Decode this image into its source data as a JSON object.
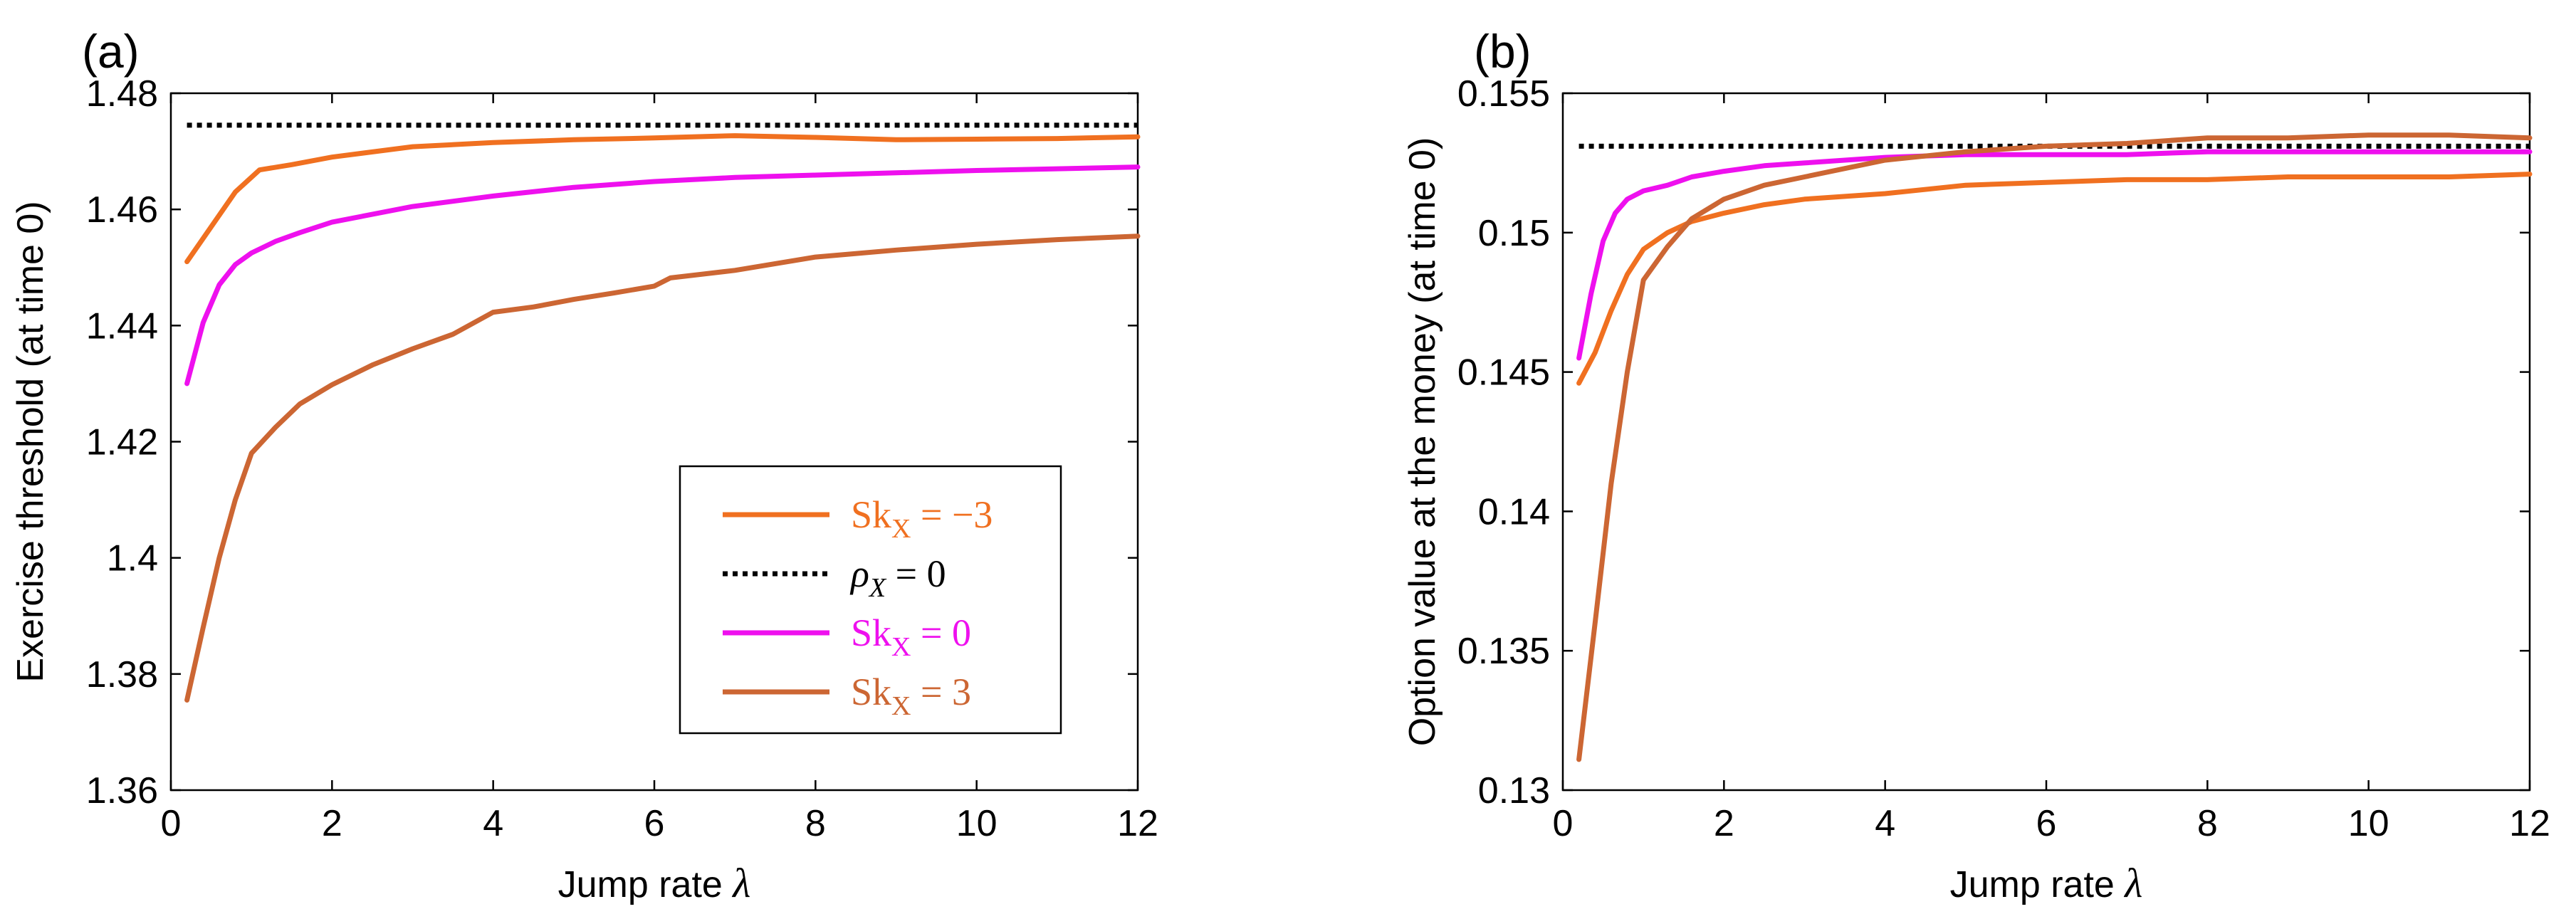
{
  "chart_data": [
    {
      "panel_label": "(a)",
      "type": "line",
      "xlabel": "Jump rate",
      "xlabel_symbol": "λ",
      "ylabel": "Exercise threshold (at time 0)",
      "xlim": [
        0,
        12
      ],
      "ylim": [
        1.36,
        1.48
      ],
      "xticks": [
        "0",
        "2",
        "4",
        "6",
        "8",
        "10",
        "12"
      ],
      "yticks": [
        "1.36",
        "1.38",
        "1.4",
        "1.42",
        "1.44",
        "1.46",
        "1.48"
      ],
      "grid": false,
      "legend_position": "lower-right",
      "series": [
        {
          "name": "Sk",
          "name_sub": "X",
          "name_rest": " = −3",
          "color": "#f07020",
          "dash": false,
          "x": [
            0.2,
            0.5,
            0.8,
            1.1,
            1.5,
            2,
            3,
            4,
            5,
            6,
            7,
            8,
            9,
            10,
            11,
            12
          ],
          "y": [
            1.451,
            1.457,
            1.463,
            1.4668,
            1.4677,
            1.469,
            1.4708,
            1.4715,
            1.472,
            1.4723,
            1.4727,
            1.4724,
            1.472,
            1.4721,
            1.4722,
            1.4725
          ]
        },
        {
          "name": "ρ",
          "name_sub": "X",
          "name_rest": " = 0",
          "color": "#000000",
          "dash": true,
          "x": [
            0.2,
            12
          ],
          "y": [
            1.4745,
            1.4745
          ]
        },
        {
          "name": "Sk",
          "name_sub": "X",
          "name_rest": " = 0",
          "color": "#ee10ee",
          "dash": false,
          "x": [
            0.2,
            0.4,
            0.6,
            0.8,
            1,
            1.3,
            1.6,
            2,
            3,
            4,
            5,
            6,
            7,
            8,
            9,
            10,
            11,
            12
          ],
          "y": [
            1.43,
            1.4405,
            1.447,
            1.4505,
            1.4525,
            1.4545,
            1.456,
            1.4578,
            1.4605,
            1.4623,
            1.4638,
            1.4648,
            1.4655,
            1.4659,
            1.4663,
            1.4667,
            1.467,
            1.4673
          ]
        },
        {
          "name": "Sk",
          "name_sub": "X",
          "name_rest": " = 3",
          "color": "#cc6633",
          "dash": false,
          "x": [
            0.2,
            0.4,
            0.6,
            0.8,
            1,
            1.3,
            1.6,
            2,
            2.5,
            3,
            3.5,
            4,
            4.5,
            5,
            5.5,
            6,
            6.2,
            7,
            8,
            9,
            10,
            11,
            12
          ],
          "y": [
            1.3755,
            1.388,
            1.4,
            1.41,
            1.418,
            1.4225,
            1.4265,
            1.4298,
            1.4332,
            1.436,
            1.4385,
            1.4423,
            1.4432,
            1.4445,
            1.4456,
            1.4468,
            1.4482,
            1.4495,
            1.4518,
            1.453,
            1.454,
            1.4548,
            1.4554
          ]
        }
      ]
    },
    {
      "panel_label": "(b)",
      "type": "line",
      "xlabel": "Jump rate",
      "xlabel_symbol": "λ",
      "ylabel": "Option value at the money (at time 0)",
      "xlim": [
        0,
        12
      ],
      "ylim": [
        0.13,
        0.155
      ],
      "xticks": [
        "0",
        "2",
        "4",
        "6",
        "8",
        "10",
        "12"
      ],
      "yticks": [
        "0.13",
        "0.135",
        "0.14",
        "0.145",
        "0.15",
        "0.155"
      ],
      "grid": false,
      "series": [
        {
          "name": "Sk_X = -3",
          "color": "#f07020",
          "dash": false,
          "x": [
            0.2,
            0.4,
            0.6,
            0.8,
            1,
            1.3,
            1.6,
            2,
            2.5,
            3,
            3.5,
            4,
            5,
            6,
            7,
            8,
            9,
            10,
            11,
            12
          ],
          "y": [
            0.1446,
            0.1457,
            0.1472,
            0.1485,
            0.1494,
            0.15,
            0.1504,
            0.1507,
            0.151,
            0.1512,
            0.1513,
            0.1514,
            0.1517,
            0.1518,
            0.1519,
            0.1519,
            0.152,
            0.152,
            0.152,
            0.1521
          ]
        },
        {
          "name": "rho_X = 0",
          "color": "#000000",
          "dash": true,
          "x": [
            0.2,
            12
          ],
          "y": [
            0.1531,
            0.1531
          ]
        },
        {
          "name": "Sk_X = 0",
          "color": "#ee10ee",
          "dash": false,
          "x": [
            0.2,
            0.35,
            0.5,
            0.65,
            0.8,
            1,
            1.3,
            1.6,
            2,
            2.5,
            3,
            4,
            5,
            6,
            7,
            8,
            9,
            10,
            11,
            12
          ],
          "y": [
            0.1455,
            0.1478,
            0.1497,
            0.1507,
            0.1512,
            0.1515,
            0.1517,
            0.152,
            0.1522,
            0.1524,
            0.1525,
            0.1527,
            0.1528,
            0.1528,
            0.1528,
            0.1529,
            0.1529,
            0.1529,
            0.1529,
            0.1529
          ]
        },
        {
          "name": "Sk_X = 3",
          "color": "#cc6633",
          "dash": false,
          "x": [
            0.2,
            0.4,
            0.6,
            0.8,
            1,
            1.3,
            1.6,
            2,
            2.5,
            3,
            3.5,
            4,
            5,
            6,
            7,
            8,
            9,
            10,
            11,
            12
          ],
          "y": [
            0.1311,
            0.136,
            0.141,
            0.145,
            0.1483,
            0.1495,
            0.1505,
            0.1512,
            0.1517,
            0.152,
            0.1523,
            0.1526,
            0.1529,
            0.1531,
            0.1532,
            0.1534,
            0.1534,
            0.1535,
            0.1535,
            0.1534
          ]
        }
      ]
    }
  ]
}
